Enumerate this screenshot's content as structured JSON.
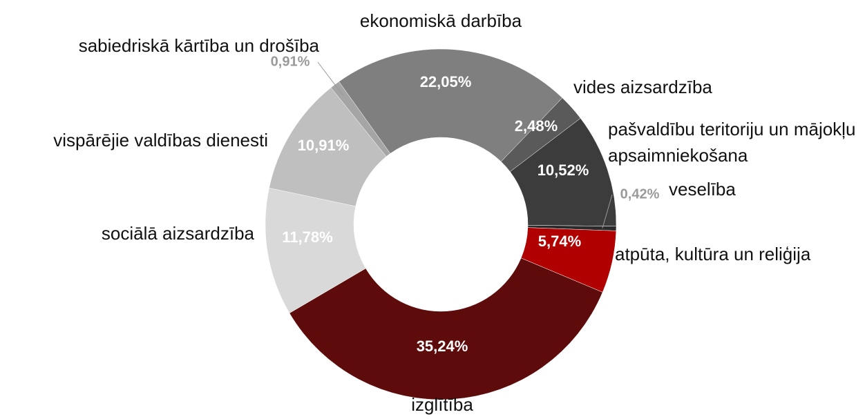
{
  "chart_data": {
    "type": "donut",
    "categories": [
      "ekonomiskā darbība",
      "vides aizsardzība",
      "pašvaldību teritoriju un mājokļu apsaimniekošana",
      "veselība",
      "atpūta, kultūra un reliģija",
      "izglītība",
      "sociālā aizsardzība",
      "vispārējie valdības dienesti",
      "sabiedriskā kārtība un drošība"
    ],
    "values": [
      22.05,
      2.48,
      10.52,
      0.42,
      5.74,
      35.24,
      11.78,
      10.91,
      0.91
    ],
    "value_labels": [
      "22,05%",
      "2,48%",
      "10,52%",
      "0,42%",
      "5,74%",
      "35,24%",
      "11,78%",
      "10,91%",
      "0,91%"
    ],
    "colors": [
      "#7f7f7f",
      "#5a5a5a",
      "#3c3c3c",
      "#2b2b2b",
      "#b00000",
      "#5e0b0b",
      "#d9d9d9",
      "#bfbfbf",
      "#a5a5a5"
    ]
  }
}
